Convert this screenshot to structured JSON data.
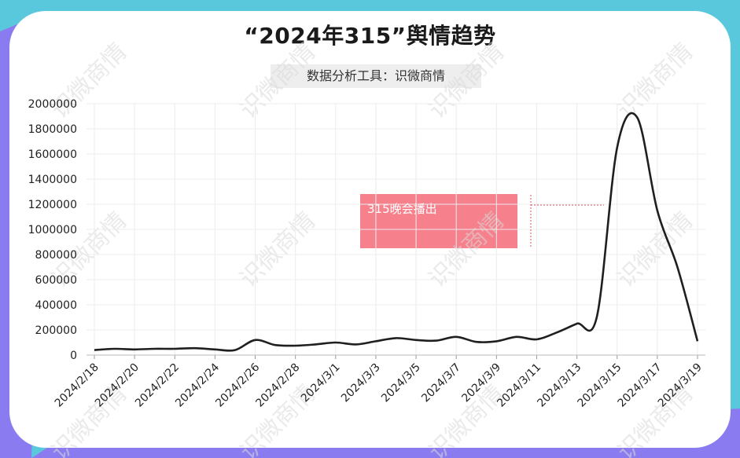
{
  "title": "“2024年315”舆情趋势",
  "subtitle": "数据分析工具：识微商情",
  "watermark": "识微商情",
  "annotation": "315晚会播出",
  "colors": {
    "background_teal": "#5ac8dc",
    "background_purple": "#8a7cf0",
    "line": "#1f1f1f",
    "annotation_fill": "#f6808c",
    "annotation_dash": "#e05060",
    "grid": "#ececec"
  },
  "chart_data": {
    "type": "line",
    "title": "“2024年315”舆情趋势",
    "xlabel": "",
    "ylabel": "",
    "ylim": [
      0,
      2000000
    ],
    "yticks": [
      0,
      200000,
      400000,
      600000,
      800000,
      1000000,
      1200000,
      1400000,
      1600000,
      1800000,
      2000000
    ],
    "x_tick_labels": [
      "2024/2/18",
      "2024/2/20",
      "2024/2/22",
      "2024/2/24",
      "2024/2/26",
      "2024/2/28",
      "2024/3/1",
      "2024/3/3",
      "2024/3/5",
      "2024/3/7",
      "2024/3/9",
      "2024/3/11",
      "2024/3/13",
      "2024/3/15",
      "2024/3/17",
      "2024/3/19"
    ],
    "x": [
      "2024/2/18",
      "2024/2/19",
      "2024/2/20",
      "2024/2/21",
      "2024/2/22",
      "2024/2/23",
      "2024/2/24",
      "2024/2/25",
      "2024/2/26",
      "2024/2/27",
      "2024/2/28",
      "2024/2/29",
      "2024/3/1",
      "2024/3/2",
      "2024/3/3",
      "2024/3/4",
      "2024/3/5",
      "2024/3/6",
      "2024/3/7",
      "2024/3/8",
      "2024/3/9",
      "2024/3/10",
      "2024/3/11",
      "2024/3/12",
      "2024/3/13",
      "2024/3/14",
      "2024/3/15",
      "2024/3/16",
      "2024/3/17",
      "2024/3/18",
      "2024/3/19"
    ],
    "values": [
      40000,
      50000,
      45000,
      50000,
      50000,
      55000,
      45000,
      40000,
      120000,
      80000,
      75000,
      85000,
      100000,
      85000,
      110000,
      135000,
      120000,
      115000,
      145000,
      105000,
      110000,
      145000,
      125000,
      180000,
      250000,
      310000,
      1650000,
      1890000,
      1150000,
      700000,
      110000
    ],
    "grid": true,
    "legend": "none",
    "annotations": [
      {
        "text": "315晚会播出",
        "x": "2024/3/15"
      }
    ]
  }
}
